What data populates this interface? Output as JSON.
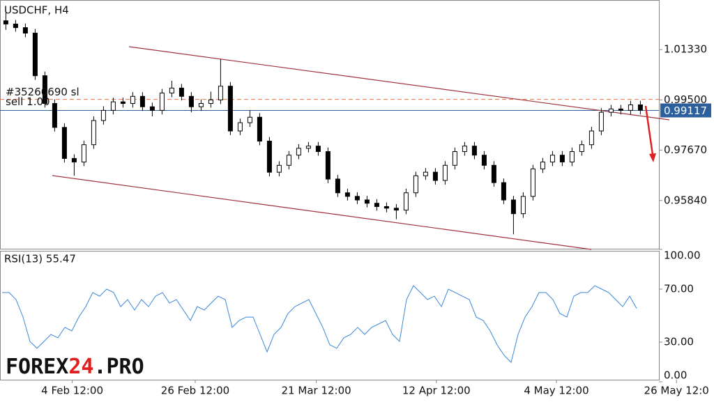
{
  "chart_data": [
    {
      "type": "candlestick",
      "title": "USDCHF, H4",
      "open": [
        1.0238,
        1.0226,
        1.0213,
        1.0193,
        1.0038,
        0.9937,
        0.985,
        0.9737,
        0.9724,
        0.9787,
        0.9875,
        0.9912,
        0.9943,
        0.9937,
        0.9963,
        0.9925,
        0.9912,
        0.9975,
        0.9993,
        0.9963,
        0.9925,
        0.9937,
        0.995,
        1.0,
        0.9837,
        0.9867,
        0.9887,
        0.98,
        0.9687,
        0.9712,
        0.9749,
        0.9774,
        0.9782,
        0.9762,
        0.9662,
        0.9612,
        0.9599,
        0.9586,
        0.9574,
        0.9562,
        0.9556,
        0.9549,
        0.9612,
        0.9674,
        0.9687,
        0.9657,
        0.9712,
        0.9762,
        0.9782,
        0.9749,
        0.9712,
        0.9649,
        0.9586,
        0.9536,
        0.9599,
        0.9699,
        0.9724,
        0.9749,
        0.9724,
        0.9762,
        0.9787,
        0.9837,
        0.9905,
        0.9917,
        0.9912,
        0.9932
      ],
      "high": [
        1.027,
        1.0241,
        1.0228,
        1.0208,
        1.0053,
        0.9952,
        0.9865,
        0.9752,
        0.9802,
        0.989,
        0.9927,
        0.9958,
        0.9958,
        0.9978,
        0.9978,
        0.994,
        0.999,
        1.002,
        1.0008,
        0.9978,
        0.9952,
        0.998,
        1.0098,
        1.0015,
        0.9882,
        0.9912,
        0.9902,
        0.9815,
        0.9727,
        0.9764,
        0.9789,
        0.9797,
        0.9797,
        0.9777,
        0.9677,
        0.9627,
        0.9614,
        0.9601,
        0.9589,
        0.9577,
        0.9571,
        0.9627,
        0.9689,
        0.9702,
        0.9702,
        0.9727,
        0.9777,
        0.9797,
        0.9797,
        0.9764,
        0.9727,
        0.9664,
        0.9601,
        0.9614,
        0.9714,
        0.9739,
        0.9764,
        0.9764,
        0.9777,
        0.9802,
        0.9852,
        0.992,
        0.9932,
        0.9932,
        0.9947,
        0.9947
      ],
      "low": [
        1.0205,
        1.0198,
        1.0178,
        1.0023,
        0.9922,
        0.9835,
        0.9722,
        0.9674,
        0.9709,
        0.9772,
        0.986,
        0.9897,
        0.9922,
        0.9922,
        0.991,
        0.989,
        0.9897,
        0.996,
        0.9948,
        0.9905,
        0.991,
        0.9922,
        0.9935,
        0.9822,
        0.9822,
        0.9852,
        0.9785,
        0.9672,
        0.9672,
        0.9697,
        0.9734,
        0.9759,
        0.9747,
        0.9647,
        0.9597,
        0.9584,
        0.9571,
        0.9559,
        0.9547,
        0.9541,
        0.9516,
        0.9534,
        0.9597,
        0.9659,
        0.9642,
        0.9642,
        0.9697,
        0.9747,
        0.9734,
        0.9697,
        0.9634,
        0.9571,
        0.9461,
        0.9521,
        0.9584,
        0.9684,
        0.9709,
        0.9709,
        0.9709,
        0.9747,
        0.9772,
        0.9822,
        0.989,
        0.9897,
        0.9897,
        0.9897
      ],
      "close": [
        1.0226,
        1.0213,
        1.0193,
        1.0038,
        0.9937,
        0.985,
        0.9737,
        0.9724,
        0.9787,
        0.9875,
        0.9912,
        0.9943,
        0.9937,
        0.9963,
        0.9925,
        0.9912,
        0.9975,
        0.9993,
        0.9963,
        0.9925,
        0.9937,
        0.995,
        1.0,
        0.9837,
        0.9867,
        0.9887,
        0.98,
        0.9687,
        0.9712,
        0.9749,
        0.9774,
        0.9782,
        0.9762,
        0.9662,
        0.9612,
        0.9599,
        0.9586,
        0.9574,
        0.9562,
        0.9556,
        0.9549,
        0.9612,
        0.9674,
        0.9687,
        0.9657,
        0.9712,
        0.9762,
        0.9782,
        0.9749,
        0.9712,
        0.9649,
        0.9586,
        0.9536,
        0.9599,
        0.9699,
        0.9724,
        0.9749,
        0.9724,
        0.9762,
        0.9787,
        0.9837,
        0.9905,
        0.9917,
        0.9912,
        0.9932,
        0.9912
      ],
      "color": "#000000",
      "xlim": [
        -0.6,
        66.9
      ],
      "xticks": [
        {
          "value": 6.8,
          "label": "4 Feb 12:00"
        },
        {
          "value": 19.4,
          "label": "26 Feb 12:00"
        },
        {
          "value": 31.8,
          "label": "21 Mar 12:00"
        },
        {
          "value": 44.1,
          "label": "12 Apr 12:00"
        },
        {
          "value": 56.4,
          "label": "4 May 12:00"
        },
        {
          "value": 68.7,
          "label": "26 May 12:0"
        }
      ],
      "ylim": [
        0.94085,
        1.03135
      ],
      "yticks": [
        {
          "value": 1.0133,
          "label": "1.01330"
        },
        {
          "value": 0.995,
          "label": "0.99500"
        },
        {
          "value": 0.9767,
          "label": "0.97670"
        },
        {
          "value": 0.9584,
          "label": "0.95840"
        }
      ],
      "current_price": {
        "value": 0.99117,
        "label": "0.99117",
        "color": "#2c5f9e"
      },
      "order": {
        "value": 0.9952,
        "label": "#35260690 sl",
        "sublabel": "sell 1.00",
        "color": "#e8743b"
      }
    },
    {
      "type": "line",
      "title": "RSI(13) 55.47",
      "values": [
        67.4,
        67.4,
        62.1,
        48.9,
        30.5,
        25.3,
        30.5,
        35.8,
        33.2,
        41.1,
        38.4,
        48.9,
        56.8,
        67.4,
        64.7,
        70.0,
        67.4,
        56.8,
        62.1,
        54.2,
        62.1,
        56.8,
        64.7,
        67.4,
        59.5,
        62.1,
        54.2,
        46.3,
        56.8,
        54.2,
        59.5,
        64.7,
        62.1,
        41.1,
        46.3,
        48.9,
        48.9,
        35.8,
        22.6,
        35.8,
        41.1,
        51.6,
        56.8,
        59.5,
        62.1,
        51.6,
        41.1,
        27.9,
        25.3,
        33.2,
        35.8,
        41.1,
        35.8,
        41.1,
        43.7,
        46.3,
        35.8,
        30.5,
        62.1,
        72.6,
        67.4,
        62.1,
        64.7,
        56.8,
        70.0,
        67.4,
        64.7,
        62.1,
        48.9,
        46.3,
        38.4,
        27.9,
        20.0,
        14.7,
        35.8,
        48.9,
        56.8,
        67.4,
        67.4,
        62.1,
        51.6,
        48.9,
        64.7,
        67.4,
        67.4,
        72.6,
        70.0,
        67.4,
        62.1,
        56.8,
        64.7,
        55.47
      ],
      "color": "#3a86d8",
      "xlim": [
        -0.3,
        94.2
      ],
      "ylim": [
        0,
        100
      ],
      "yticks": [
        {
          "value": 100,
          "label": "100.00"
        },
        {
          "value": 70,
          "label": "70.00"
        },
        {
          "value": 30,
          "label": "30.00"
        },
        {
          "value": 0,
          "label": "0.00"
        }
      ]
    }
  ],
  "logo": {
    "part1": "FOREX",
    "part2": "24",
    "part3": ".PRO"
  }
}
